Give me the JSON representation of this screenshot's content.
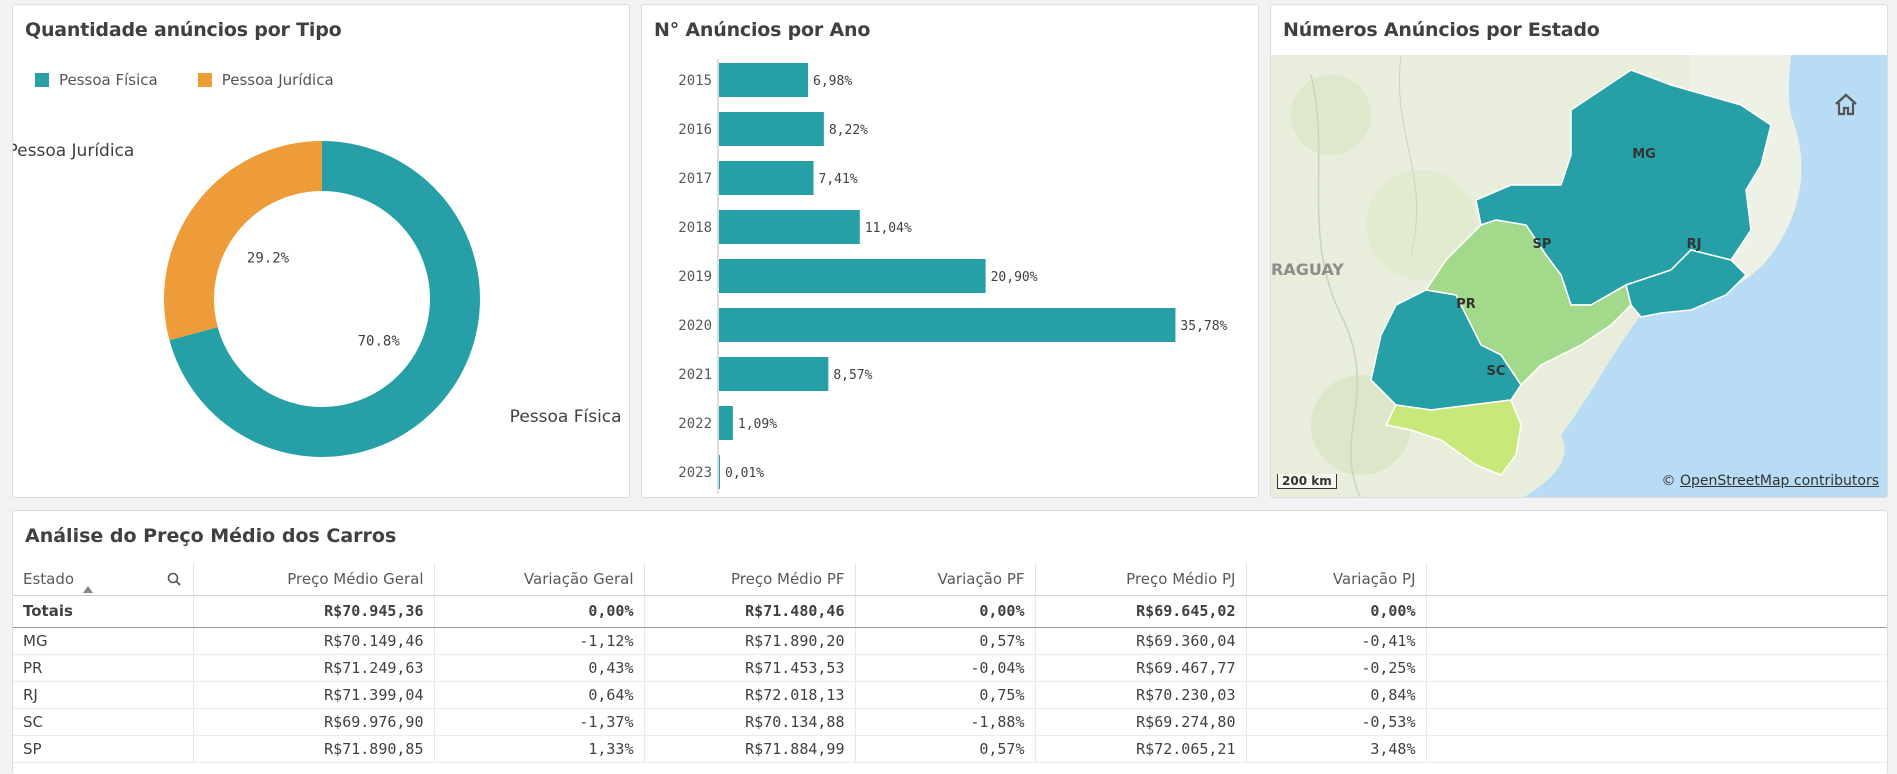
{
  "donut_panel": {
    "title": "Quantidade anúncios por Tipo",
    "colors": {
      "pf": "#26a0a6",
      "pj": "#ee9b3a"
    },
    "chart_data": {
      "type": "pie",
      "legend": "top-left",
      "categories": [
        "Pessoa Física",
        "Pessoa Jurídica"
      ],
      "values": [
        70.8,
        29.2
      ],
      "value_labels": [
        "70.8%",
        "29.2%"
      ]
    }
  },
  "bars_panel": {
    "title": "N° Anúncios por Ano",
    "color": "#26a0a6",
    "chart_data": {
      "type": "bar",
      "orientation": "horizontal",
      "categories": [
        "2015",
        "2016",
        "2017",
        "2018",
        "2019",
        "2020",
        "2021",
        "2022",
        "2023"
      ],
      "values": [
        6.98,
        8.22,
        7.41,
        11.04,
        20.9,
        35.78,
        8.57,
        1.09,
        0.01
      ],
      "value_labels": [
        "6,98%",
        "8,22%",
        "7,41%",
        "11,04%",
        "20,90%",
        "35,78%",
        "8,57%",
        "1,09%",
        "0,01%"
      ],
      "xlim": [
        0,
        37
      ]
    }
  },
  "map_panel": {
    "title": "Números Anúncios por Estado",
    "country_label": "RAGUAY",
    "states": [
      {
        "code": "MG",
        "color": "#26a0a6"
      },
      {
        "code": "SP",
        "color": "#a3d98a"
      },
      {
        "code": "RJ",
        "color": "#26a0a6"
      },
      {
        "code": "PR",
        "color": "#26a0a6"
      },
      {
        "code": "SC",
        "color": "#c8e87a"
      }
    ],
    "scale_label": "200 km",
    "attribution_prefix": "©",
    "attribution_link": "OpenStreetMap contributors",
    "home_icon": "home-icon"
  },
  "table_panel": {
    "title": "Análise do Preço Médio dos Carros",
    "search_icon": "search-icon",
    "columns": [
      "Estado",
      "Preço Médio Geral",
      "Variação Geral",
      "Preço Médio PF",
      "Variação PF",
      "Preço Médio PJ",
      "Variação PJ"
    ],
    "totals": [
      "Totais",
      "R$70.945,36",
      "0,00%",
      "R$71.480,46",
      "0,00%",
      "R$69.645,02",
      "0,00%"
    ],
    "rows": [
      [
        "MG",
        "R$70.149,46",
        "-1,12%",
        "R$71.890,20",
        "0,57%",
        "R$69.360,04",
        "-0,41%"
      ],
      [
        "PR",
        "R$71.249,63",
        "0,43%",
        "R$71.453,53",
        "-0,04%",
        "R$69.467,77",
        "-0,25%"
      ],
      [
        "RJ",
        "R$71.399,04",
        "0,64%",
        "R$72.018,13",
        "0,75%",
        "R$70.230,03",
        "0,84%"
      ],
      [
        "SC",
        "R$69.976,90",
        "-1,37%",
        "R$70.134,88",
        "-1,88%",
        "R$69.274,80",
        "-0,53%"
      ],
      [
        "SP",
        "R$71.890,85",
        "1,33%",
        "R$71.884,99",
        "0,57%",
        "R$72.065,21",
        "3,48%"
      ]
    ]
  }
}
